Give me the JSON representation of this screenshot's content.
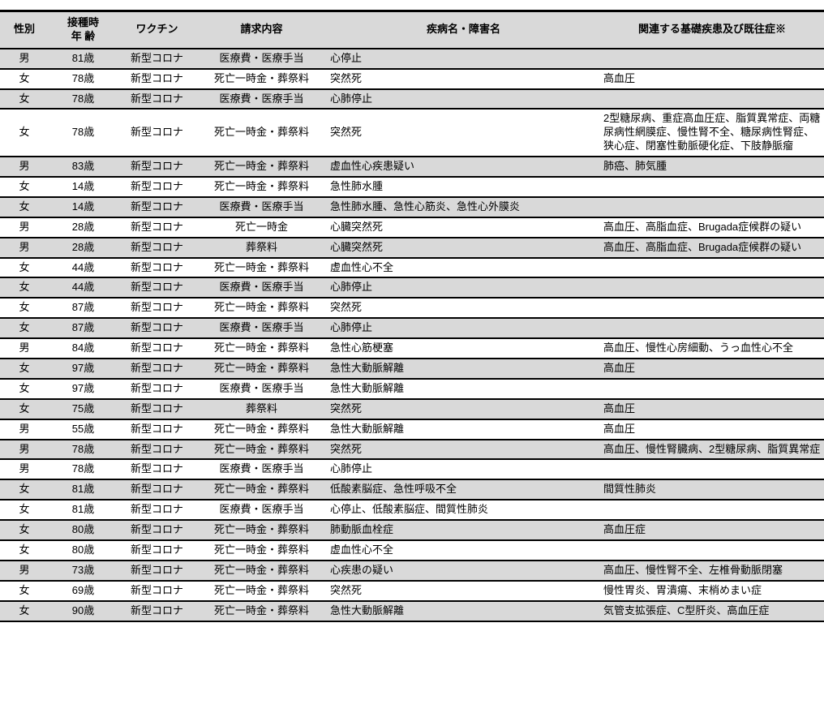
{
  "colors": {
    "stripe": "#d9d9d9",
    "border": "#000000",
    "background": "#ffffff"
  },
  "table": {
    "columns": [
      {
        "key": "gender",
        "label": "性別"
      },
      {
        "key": "age",
        "label": "接種時\n年 齢"
      },
      {
        "key": "vaccine",
        "label": "ワクチン"
      },
      {
        "key": "claim",
        "label": "請求内容"
      },
      {
        "key": "disease",
        "label": "疾病名・障害名"
      },
      {
        "key": "underlying",
        "label": "関連する基礎疾患及び既往症※"
      }
    ],
    "rows": [
      {
        "gender": "男",
        "age": "81歳",
        "vaccine": "新型コロナ",
        "claim": "医療費・医療手当",
        "disease": "心停止",
        "underlying": ""
      },
      {
        "gender": "女",
        "age": "78歳",
        "vaccine": "新型コロナ",
        "claim": "死亡一時金・葬祭料",
        "disease": "突然死",
        "underlying": "高血圧"
      },
      {
        "gender": "女",
        "age": "78歳",
        "vaccine": "新型コロナ",
        "claim": "医療費・医療手当",
        "disease": "心肺停止",
        "underlying": ""
      },
      {
        "gender": "女",
        "age": "78歳",
        "vaccine": "新型コロナ",
        "claim": "死亡一時金・葬祭料",
        "disease": "突然死",
        "underlying": "2型糖尿病、重症高血圧症、脂質異常症、両糖尿病性網膜症、慢性腎不全、糖尿病性腎症、狭心症、閉塞性動脈硬化症、下肢静脈瘤"
      },
      {
        "gender": "男",
        "age": "83歳",
        "vaccine": "新型コロナ",
        "claim": "死亡一時金・葬祭料",
        "disease": "虚血性心疾患疑い",
        "underlying": "肺癌、肺気腫"
      },
      {
        "gender": "女",
        "age": "14歳",
        "vaccine": "新型コロナ",
        "claim": "死亡一時金・葬祭料",
        "disease": "急性肺水腫",
        "underlying": ""
      },
      {
        "gender": "女",
        "age": "14歳",
        "vaccine": "新型コロナ",
        "claim": "医療費・医療手当",
        "disease": "急性肺水腫、急性心筋炎、急性心外膜炎",
        "underlying": ""
      },
      {
        "gender": "男",
        "age": "28歳",
        "vaccine": "新型コロナ",
        "claim": "死亡一時金",
        "disease": "心臓突然死",
        "underlying": "高血圧、高脂血症、Brugada症候群の疑い"
      },
      {
        "gender": "男",
        "age": "28歳",
        "vaccine": "新型コロナ",
        "claim": "葬祭料",
        "disease": "心臓突然死",
        "underlying": "高血圧、高脂血症、Brugada症候群の疑い"
      },
      {
        "gender": "女",
        "age": "44歳",
        "vaccine": "新型コロナ",
        "claim": "死亡一時金・葬祭料",
        "disease": "虚血性心不全",
        "underlying": ""
      },
      {
        "gender": "女",
        "age": "44歳",
        "vaccine": "新型コロナ",
        "claim": "医療費・医療手当",
        "disease": "心肺停止",
        "underlying": ""
      },
      {
        "gender": "女",
        "age": "87歳",
        "vaccine": "新型コロナ",
        "claim": "死亡一時金・葬祭料",
        "disease": "突然死",
        "underlying": ""
      },
      {
        "gender": "女",
        "age": "87歳",
        "vaccine": "新型コロナ",
        "claim": "医療費・医療手当",
        "disease": "心肺停止",
        "underlying": ""
      },
      {
        "gender": "男",
        "age": "84歳",
        "vaccine": "新型コロナ",
        "claim": "死亡一時金・葬祭料",
        "disease": "急性心筋梗塞",
        "underlying": "高血圧、慢性心房細動、うっ血性心不全"
      },
      {
        "gender": "女",
        "age": "97歳",
        "vaccine": "新型コロナ",
        "claim": "死亡一時金・葬祭料",
        "disease": "急性大動脈解離",
        "underlying": "高血圧"
      },
      {
        "gender": "女",
        "age": "97歳",
        "vaccine": "新型コロナ",
        "claim": "医療費・医療手当",
        "disease": "急性大動脈解離",
        "underlying": ""
      },
      {
        "gender": "女",
        "age": "75歳",
        "vaccine": "新型コロナ",
        "claim": "葬祭料",
        "disease": "突然死",
        "underlying": "高血圧"
      },
      {
        "gender": "男",
        "age": "55歳",
        "vaccine": "新型コロナ",
        "claim": "死亡一時金・葬祭料",
        "disease": "急性大動脈解離",
        "underlying": "高血圧"
      },
      {
        "gender": "男",
        "age": "78歳",
        "vaccine": "新型コロナ",
        "claim": "死亡一時金・葬祭料",
        "disease": "突然死",
        "underlying": "高血圧、慢性腎臓病、2型糖尿病、脂質異常症"
      },
      {
        "gender": "男",
        "age": "78歳",
        "vaccine": "新型コロナ",
        "claim": "医療費・医療手当",
        "disease": "心肺停止",
        "underlying": ""
      },
      {
        "gender": "女",
        "age": "81歳",
        "vaccine": "新型コロナ",
        "claim": "死亡一時金・葬祭料",
        "disease": "低酸素脳症、急性呼吸不全",
        "underlying": "間質性肺炎"
      },
      {
        "gender": "女",
        "age": "81歳",
        "vaccine": "新型コロナ",
        "claim": "医療費・医療手当",
        "disease": "心停止、低酸素脳症、間質性肺炎",
        "underlying": ""
      },
      {
        "gender": "女",
        "age": "80歳",
        "vaccine": "新型コロナ",
        "claim": "死亡一時金・葬祭料",
        "disease": "肺動脈血栓症",
        "underlying": "高血圧症"
      },
      {
        "gender": "女",
        "age": "80歳",
        "vaccine": "新型コロナ",
        "claim": "死亡一時金・葬祭料",
        "disease": "虚血性心不全",
        "underlying": ""
      },
      {
        "gender": "男",
        "age": "73歳",
        "vaccine": "新型コロナ",
        "claim": "死亡一時金・葬祭料",
        "disease": "心疾患の疑い",
        "underlying": "高血圧、慢性腎不全、左椎骨動脈閉塞"
      },
      {
        "gender": "女",
        "age": "69歳",
        "vaccine": "新型コロナ",
        "claim": "死亡一時金・葬祭料",
        "disease": "突然死",
        "underlying": "慢性胃炎、胃潰瘍、末梢めまい症"
      },
      {
        "gender": "女",
        "age": "90歳",
        "vaccine": "新型コロナ",
        "claim": "死亡一時金・葬祭料",
        "disease": "急性大動脈解離",
        "underlying": "気管支拡張症、C型肝炎、高血圧症"
      }
    ]
  }
}
